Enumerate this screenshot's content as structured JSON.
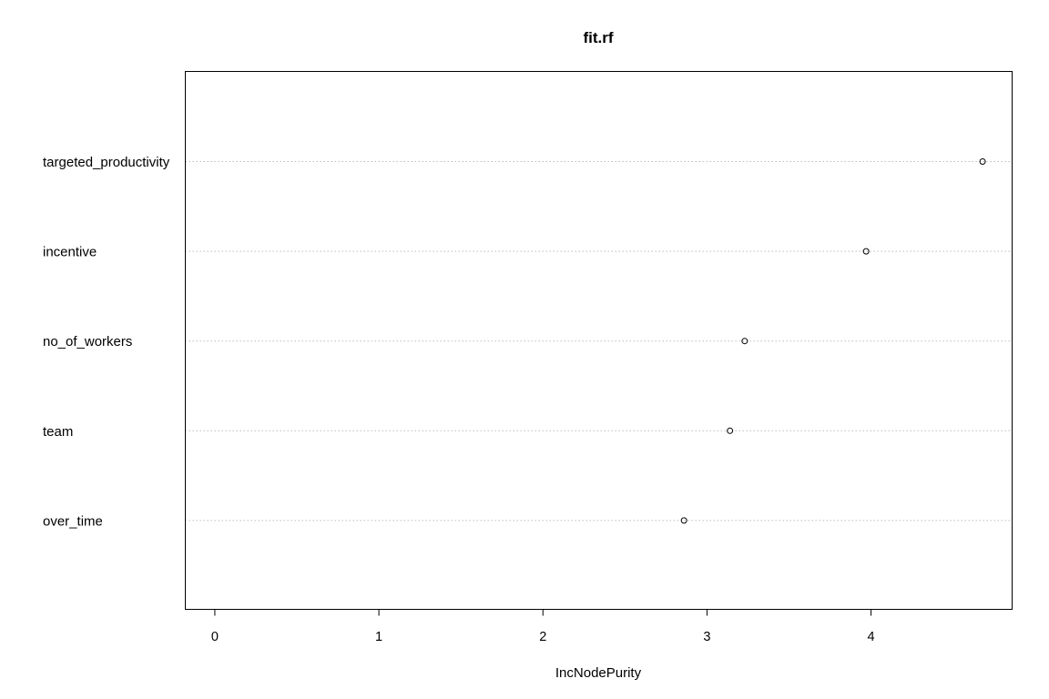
{
  "chart_data": {
    "type": "scatter",
    "title": "fit.rf",
    "xlabel": "IncNodePurity",
    "ylabel": "",
    "xlim": [
      -0.18,
      4.86
    ],
    "xticks": [
      "0",
      "1",
      "2",
      "3",
      "4"
    ],
    "categories": [
      "targeted_productivity",
      "incentive",
      "no_of_workers",
      "team",
      "over_time"
    ],
    "values": [
      4.68,
      3.97,
      3.23,
      3.14,
      2.86
    ],
    "grid": "dotted horizontal lines per category",
    "point_style": "open circle"
  }
}
